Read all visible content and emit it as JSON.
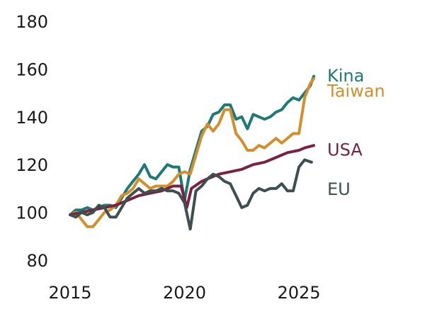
{
  "chart_data": {
    "type": "line",
    "title": "",
    "xlabel": "",
    "ylabel": "",
    "xlim": [
      2015,
      2025.7
    ],
    "ylim": [
      80,
      180
    ],
    "y_ticks": [
      "80",
      "100",
      "120",
      "140",
      "160",
      "180"
    ],
    "x_ticks": [
      "2015",
      "2020",
      "2025"
    ],
    "grid": false,
    "legend_placement": "right-inline",
    "series": [
      {
        "name": "Kina",
        "color": "#1f7a76",
        "points": [
          [
            2015,
            99
          ],
          [
            2015.25,
            101
          ],
          [
            2015.5,
            101
          ],
          [
            2015.75,
            102
          ],
          [
            2016,
            101
          ],
          [
            2016.25,
            102
          ],
          [
            2016.5,
            103
          ],
          [
            2016.75,
            103
          ],
          [
            2017,
            102
          ],
          [
            2017.25,
            106
          ],
          [
            2017.5,
            110
          ],
          [
            2017.75,
            113
          ],
          [
            2018,
            116
          ],
          [
            2018.25,
            120
          ],
          [
            2018.5,
            115
          ],
          [
            2018.75,
            114
          ],
          [
            2019,
            117
          ],
          [
            2019.25,
            120
          ],
          [
            2019.5,
            119
          ],
          [
            2019.75,
            119
          ],
          [
            2020,
            105
          ],
          [
            2020.25,
            118
          ],
          [
            2020.5,
            126
          ],
          [
            2020.75,
            134
          ],
          [
            2021,
            136
          ],
          [
            2021.25,
            141
          ],
          [
            2021.5,
            142
          ],
          [
            2021.75,
            145
          ],
          [
            2022,
            145
          ],
          [
            2022.25,
            139
          ],
          [
            2022.5,
            140
          ],
          [
            2022.75,
            135
          ],
          [
            2023,
            141
          ],
          [
            2023.25,
            140
          ],
          [
            2023.5,
            139
          ],
          [
            2023.75,
            140
          ],
          [
            2024,
            142
          ],
          [
            2024.25,
            143
          ],
          [
            2024.5,
            146
          ],
          [
            2024.75,
            148
          ],
          [
            2025,
            147
          ],
          [
            2025.25,
            150
          ],
          [
            2025.5,
            153
          ],
          [
            2025.65,
            157
          ]
        ]
      },
      {
        "name": "Taiwan",
        "color": "#d18f2e",
        "points": [
          [
            2015,
            99
          ],
          [
            2015.25,
            100
          ],
          [
            2015.5,
            97
          ],
          [
            2015.75,
            94
          ],
          [
            2016,
            94
          ],
          [
            2016.25,
            97
          ],
          [
            2016.5,
            100
          ],
          [
            2016.75,
            101
          ],
          [
            2017,
            103
          ],
          [
            2017.25,
            107
          ],
          [
            2017.5,
            108
          ],
          [
            2017.75,
            110
          ],
          [
            2018,
            114
          ],
          [
            2018.25,
            112
          ],
          [
            2018.5,
            110
          ],
          [
            2018.75,
            111
          ],
          [
            2019,
            111
          ],
          [
            2019.25,
            111
          ],
          [
            2019.5,
            113
          ],
          [
            2019.75,
            116
          ],
          [
            2020,
            117
          ],
          [
            2020.25,
            116
          ],
          [
            2020.5,
            124
          ],
          [
            2020.75,
            132
          ],
          [
            2021,
            137
          ],
          [
            2021.25,
            134
          ],
          [
            2021.5,
            137
          ],
          [
            2021.75,
            143
          ],
          [
            2022,
            143
          ],
          [
            2022.25,
            133
          ],
          [
            2022.5,
            130
          ],
          [
            2022.75,
            126
          ],
          [
            2023,
            126
          ],
          [
            2023.25,
            128
          ],
          [
            2023.5,
            127
          ],
          [
            2023.75,
            129
          ],
          [
            2024,
            131
          ],
          [
            2024.25,
            129
          ],
          [
            2024.5,
            131
          ],
          [
            2024.75,
            133
          ],
          [
            2025,
            133
          ],
          [
            2025.25,
            148
          ],
          [
            2025.5,
            154
          ],
          [
            2025.65,
            156
          ]
        ]
      },
      {
        "name": "USA",
        "color": "#7a2340",
        "points": [
          [
            2015,
            99
          ],
          [
            2015.5,
            100
          ],
          [
            2016,
            101
          ],
          [
            2016.5,
            102
          ],
          [
            2017,
            103
          ],
          [
            2017.5,
            105
          ],
          [
            2018,
            107
          ],
          [
            2018.5,
            108
          ],
          [
            2019,
            109
          ],
          [
            2019.5,
            111
          ],
          [
            2019.85,
            111
          ],
          [
            2020.1,
            102
          ],
          [
            2020.3,
            110
          ],
          [
            2020.75,
            113
          ],
          [
            2021,
            114
          ],
          [
            2021.5,
            116
          ],
          [
            2022,
            117
          ],
          [
            2022.5,
            118
          ],
          [
            2023,
            120
          ],
          [
            2023.5,
            121
          ],
          [
            2024,
            123
          ],
          [
            2024.5,
            125
          ],
          [
            2025,
            126
          ],
          [
            2025.25,
            127
          ],
          [
            2025.65,
            128
          ]
        ]
      },
      {
        "name": "EU",
        "color": "#3f4f4f",
        "points": [
          [
            2015,
            99
          ],
          [
            2015.25,
            98
          ],
          [
            2015.5,
            100
          ],
          [
            2015.75,
            99
          ],
          [
            2016,
            100
          ],
          [
            2016.25,
            103
          ],
          [
            2016.5,
            102
          ],
          [
            2016.75,
            98
          ],
          [
            2017,
            98
          ],
          [
            2017.25,
            102
          ],
          [
            2017.5,
            106
          ],
          [
            2017.75,
            108
          ],
          [
            2018,
            110
          ],
          [
            2018.25,
            108
          ],
          [
            2018.5,
            109
          ],
          [
            2018.75,
            109
          ],
          [
            2019,
            110
          ],
          [
            2019.25,
            109
          ],
          [
            2019.5,
            109
          ],
          [
            2019.75,
            108
          ],
          [
            2020,
            104
          ],
          [
            2020.25,
            93
          ],
          [
            2020.5,
            109
          ],
          [
            2020.75,
            111
          ],
          [
            2021,
            114
          ],
          [
            2021.25,
            116
          ],
          [
            2021.5,
            115
          ],
          [
            2021.75,
            113
          ],
          [
            2022,
            112
          ],
          [
            2022.25,
            107
          ],
          [
            2022.5,
            102
          ],
          [
            2022.75,
            103
          ],
          [
            2023,
            108
          ],
          [
            2023.25,
            110
          ],
          [
            2023.5,
            109
          ],
          [
            2023.75,
            110
          ],
          [
            2024,
            110
          ],
          [
            2024.25,
            112
          ],
          [
            2024.5,
            109
          ],
          [
            2024.75,
            109
          ],
          [
            2025,
            119
          ],
          [
            2025.25,
            122
          ],
          [
            2025.55,
            121
          ]
        ]
      }
    ],
    "legend_labels": [
      {
        "series": "Kina",
        "text": "Kina",
        "y": 157.5
      },
      {
        "series": "Taiwan",
        "text": "Taiwan",
        "y": 151
      },
      {
        "series": "USA",
        "text": "USA",
        "y": 126.5
      },
      {
        "series": "EU",
        "text": "EU",
        "y": 110
      }
    ]
  }
}
